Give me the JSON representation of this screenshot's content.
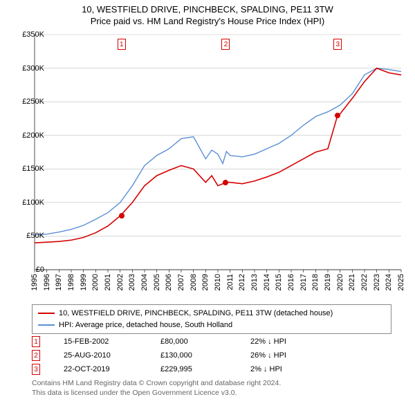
{
  "title_line1": "10, WESTFIELD DRIVE, PINCHBECK, SPALDING, PE11 3TW",
  "title_line2": "Price paid vs. HM Land Registry's House Price Index (HPI)",
  "chart": {
    "type": "line",
    "background_color": "#ffffff",
    "gridline_color": "#bfbfbf",
    "label_fontsize": 11,
    "ylim": [
      0,
      350000
    ],
    "ytick_step": 50000,
    "ytick_labels": [
      "£0",
      "£50K",
      "£100K",
      "£150K",
      "£200K",
      "£250K",
      "£300K",
      "£350K"
    ],
    "xlim": [
      1995,
      2025
    ],
    "xticks": [
      1995,
      1996,
      1997,
      1998,
      1999,
      2000,
      2001,
      2002,
      2003,
      2004,
      2005,
      2006,
      2007,
      2008,
      2009,
      2010,
      2011,
      2012,
      2013,
      2014,
      2015,
      2016,
      2017,
      2018,
      2019,
      2020,
      2021,
      2022,
      2023,
      2024,
      2025
    ],
    "series": [
      {
        "id": "property",
        "color": "#d40000",
        "line_width": 1.6,
        "data": [
          [
            1995,
            40000
          ],
          [
            1996,
            41000
          ],
          [
            1997,
            42000
          ],
          [
            1998,
            44000
          ],
          [
            1999,
            48000
          ],
          [
            2000,
            55000
          ],
          [
            2001,
            65000
          ],
          [
            2002,
            80000
          ],
          [
            2003,
            100000
          ],
          [
            2004,
            125000
          ],
          [
            2005,
            140000
          ],
          [
            2006,
            148000
          ],
          [
            2007,
            155000
          ],
          [
            2008,
            150000
          ],
          [
            2009,
            130000
          ],
          [
            2009.5,
            140000
          ],
          [
            2010,
            125000
          ],
          [
            2010.7,
            130000
          ],
          [
            2011,
            130000
          ],
          [
            2012,
            128000
          ],
          [
            2013,
            132000
          ],
          [
            2014,
            138000
          ],
          [
            2015,
            145000
          ],
          [
            2016,
            155000
          ],
          [
            2017,
            165000
          ],
          [
            2018,
            175000
          ],
          [
            2019,
            180000
          ],
          [
            2019.8,
            229995
          ],
          [
            2020,
            232000
          ],
          [
            2021,
            255000
          ],
          [
            2022,
            280000
          ],
          [
            2023,
            300000
          ],
          [
            2024,
            293000
          ],
          [
            2025,
            290000
          ]
        ]
      },
      {
        "id": "hpi",
        "color": "#5b8fd6",
        "line_width": 1.4,
        "data": [
          [
            1995,
            52000
          ],
          [
            1996,
            53000
          ],
          [
            1997,
            56000
          ],
          [
            1998,
            60000
          ],
          [
            1999,
            66000
          ],
          [
            2000,
            75000
          ],
          [
            2001,
            85000
          ],
          [
            2002,
            100000
          ],
          [
            2003,
            125000
          ],
          [
            2004,
            155000
          ],
          [
            2005,
            170000
          ],
          [
            2006,
            180000
          ],
          [
            2007,
            195000
          ],
          [
            2008,
            198000
          ],
          [
            2009,
            165000
          ],
          [
            2009.5,
            178000
          ],
          [
            2010,
            172000
          ],
          [
            2010.4,
            158000
          ],
          [
            2010.7,
            176000
          ],
          [
            2011,
            170000
          ],
          [
            2012,
            168000
          ],
          [
            2013,
            172000
          ],
          [
            2014,
            180000
          ],
          [
            2015,
            188000
          ],
          [
            2016,
            200000
          ],
          [
            2017,
            215000
          ],
          [
            2018,
            228000
          ],
          [
            2019,
            235000
          ],
          [
            2020,
            245000
          ],
          [
            2021,
            262000
          ],
          [
            2022,
            290000
          ],
          [
            2023,
            300000
          ],
          [
            2024,
            298000
          ],
          [
            2025,
            295000
          ]
        ]
      }
    ],
    "sale_points": [
      {
        "x": 2002.12,
        "y": 80000,
        "color": "#d40000"
      },
      {
        "x": 2010.65,
        "y": 130000,
        "color": "#d40000"
      },
      {
        "x": 2019.81,
        "y": 229995,
        "color": "#d40000"
      }
    ],
    "markers": [
      {
        "n": "1",
        "x": 2002.12,
        "color": "#d40000"
      },
      {
        "n": "2",
        "x": 2010.65,
        "color": "#d40000"
      },
      {
        "n": "3",
        "x": 2019.81,
        "color": "#d40000"
      }
    ]
  },
  "legend": {
    "items": [
      {
        "color": "#d40000",
        "label": "10, WESTFIELD DRIVE, PINCHBECK, SPALDING, PE11 3TW (detached house)"
      },
      {
        "color": "#5b8fd6",
        "label": "HPI: Average price, detached house, South Holland"
      }
    ]
  },
  "sales": [
    {
      "n": "1",
      "date": "15-FEB-2002",
      "price": "£80,000",
      "hpi": "22% ↓ HPI",
      "color": "#d40000"
    },
    {
      "n": "2",
      "date": "25-AUG-2010",
      "price": "£130,000",
      "hpi": "26% ↓ HPI",
      "color": "#d40000"
    },
    {
      "n": "3",
      "date": "22-OCT-2019",
      "price": "£229,995",
      "hpi": "2% ↓ HPI",
      "color": "#d40000"
    }
  ],
  "footer": {
    "line1": "Contains HM Land Registry data © Crown copyright and database right 2024.",
    "line2": "This data is licensed under the Open Government Licence v3.0."
  }
}
